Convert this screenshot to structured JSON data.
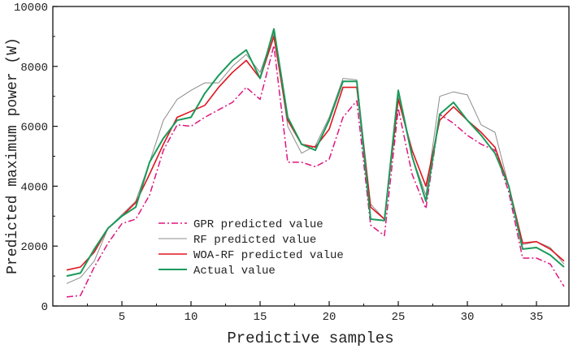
{
  "chart_data": {
    "type": "line",
    "title": "",
    "xlabel": "Predictive samples",
    "ylabel": "Predicted maximum power (W)",
    "xlim": [
      0,
      37.35
    ],
    "ylim": [
      0,
      10000
    ],
    "xticks": [
      5,
      10,
      15,
      20,
      25,
      30,
      35
    ],
    "yticks": [
      0,
      2000,
      4000,
      6000,
      8000,
      10000
    ],
    "grid": false,
    "legend_position": "bottom-left",
    "x": [
      1,
      2,
      3,
      4,
      5,
      6,
      7,
      8,
      9,
      10,
      11,
      12,
      13,
      14,
      15,
      16,
      17,
      18,
      19,
      20,
      21,
      22,
      23,
      24,
      25,
      26,
      27,
      28,
      29,
      30,
      31,
      32,
      33,
      34,
      35,
      36,
      37
    ],
    "series": [
      {
        "name": "GPR predicted value",
        "color": "#e0157f",
        "style": "dashdot",
        "values": [
          300,
          350,
          1300,
          2100,
          2750,
          2900,
          3700,
          5200,
          6050,
          6000,
          6300,
          6550,
          6800,
          7300,
          6900,
          8700,
          4800,
          4800,
          4650,
          4900,
          6300,
          6850,
          2700,
          2350,
          6600,
          4400,
          3250,
          6400,
          6100,
          5700,
          5400,
          5200,
          3800,
          1600,
          1600,
          1400,
          650
        ]
      },
      {
        "name": "RF predicted value",
        "color": "#8c8c8c",
        "style": "solid",
        "values": [
          750,
          950,
          1500,
          2600,
          3050,
          3500,
          4800,
          6200,
          6900,
          7200,
          7450,
          7450,
          8000,
          8400,
          7800,
          9100,
          6000,
          5100,
          5350,
          6300,
          7600,
          7550,
          3400,
          2900,
          7000,
          5000,
          3700,
          7000,
          7150,
          7050,
          6050,
          5800,
          4000,
          2050,
          2150,
          1950,
          1400
        ]
      },
      {
        "name": "WOA-RF predicted value",
        "color": "#e0141e",
        "style": "solid",
        "values": [
          1200,
          1300,
          1800,
          2600,
          3000,
          3450,
          4400,
          5400,
          6300,
          6500,
          6700,
          7300,
          7800,
          8200,
          7600,
          9000,
          6200,
          5400,
          5300,
          5900,
          7300,
          7300,
          3300,
          2900,
          6900,
          5200,
          4000,
          6200,
          6650,
          6200,
          5800,
          5300,
          4000,
          2100,
          2150,
          1900,
          1500
        ]
      },
      {
        "name": "Actual value",
        "color": "#1a9a5a",
        "style": "solid",
        "values": [
          1000,
          1100,
          1900,
          2600,
          3000,
          3300,
          4800,
          5600,
          6200,
          6300,
          7100,
          7700,
          8200,
          8550,
          7600,
          9250,
          6300,
          5400,
          5200,
          6200,
          7500,
          7500,
          2900,
          2850,
          7200,
          5000,
          3500,
          6400,
          6800,
          6200,
          5700,
          5100,
          4000,
          1900,
          1950,
          1700,
          1300
        ]
      }
    ]
  }
}
